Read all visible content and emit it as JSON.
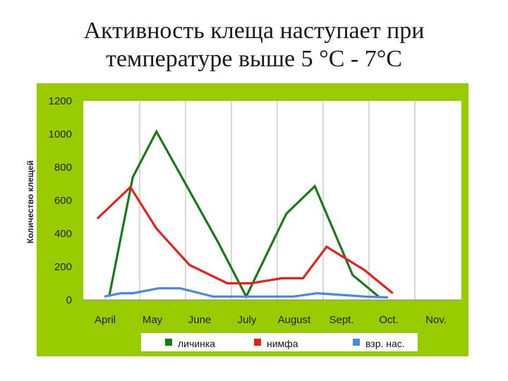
{
  "title_line1": "Активность клеща наступает при",
  "title_line2": "температуре выше  5 °С - 7°С",
  "chart_data": {
    "type": "line",
    "title": "Активность клеща наступает при температуре выше  5 °С - 7°С",
    "ylabel": "Количество клещей",
    "xlabel": "",
    "ylim": [
      0,
      1200
    ],
    "yticks": [
      0,
      200,
      400,
      600,
      800,
      1000,
      1200
    ],
    "x_labels": [
      "April",
      "May",
      "June",
      "July",
      "August",
      "Sept.",
      "Oct.",
      "Nov."
    ],
    "grid": "vertical",
    "legend_position": "bottom",
    "background": "#99cc00",
    "plot_background": "#ffffff",
    "series": [
      {
        "name": "личинка",
        "color": "#1a7a1a",
        "points": [
          [
            0.1,
            20
          ],
          [
            0.6,
            740
          ],
          [
            1.1,
            1015
          ],
          [
            2.4,
            350
          ],
          [
            3.0,
            20
          ],
          [
            3.85,
            520
          ],
          [
            4.45,
            685
          ],
          [
            5.25,
            150
          ],
          [
            5.8,
            20
          ]
        ]
      },
      {
        "name": "нимфа",
        "color": "#e8201c",
        "points": [
          [
            -0.15,
            490
          ],
          [
            0.55,
            680
          ],
          [
            1.1,
            430
          ],
          [
            1.8,
            210
          ],
          [
            2.6,
            100
          ],
          [
            3.1,
            100
          ],
          [
            3.75,
            130
          ],
          [
            4.2,
            130
          ],
          [
            4.7,
            320
          ],
          [
            5.5,
            180
          ],
          [
            6.1,
            40
          ]
        ]
      },
      {
        "name": "взр. нас.",
        "color": "#4a86e8",
        "points": [
          [
            0.0,
            20
          ],
          [
            0.35,
            40
          ],
          [
            0.6,
            40
          ],
          [
            1.15,
            70
          ],
          [
            1.6,
            70
          ],
          [
            2.3,
            20
          ],
          [
            2.9,
            20
          ],
          [
            4.0,
            20
          ],
          [
            4.5,
            40
          ],
          [
            5.5,
            20
          ],
          [
            6.0,
            15
          ]
        ]
      }
    ]
  }
}
